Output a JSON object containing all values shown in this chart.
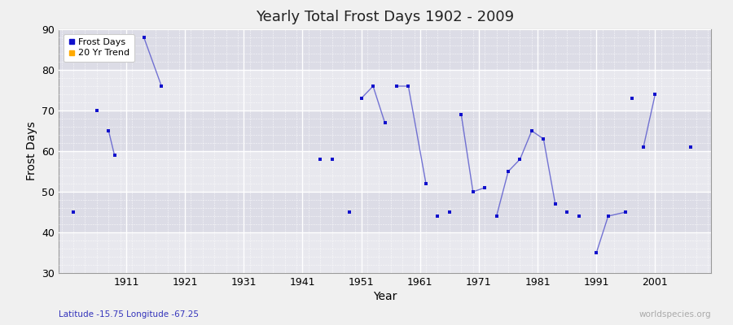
{
  "title": "Yearly Total Frost Days 1902 - 2009",
  "xlabel": "Year",
  "ylabel": "Frost Days",
  "xlim": [
    1899.5,
    2010.5
  ],
  "ylim": [
    30,
    90
  ],
  "yticks": [
    30,
    40,
    50,
    60,
    70,
    80,
    90
  ],
  "xticks": [
    1911,
    1921,
    1931,
    1941,
    1951,
    1961,
    1971,
    1981,
    1991,
    2001
  ],
  "fig_bg": "#f0f0f0",
  "band_colors": [
    "#e8e8ee",
    "#dcdce6"
  ],
  "grid_major_color": "#ffffff",
  "grid_minor_color": "#ffffff",
  "line_color": "#5555cc",
  "marker_color": "#1111cc",
  "subtitle": "Latitude -15.75 Longitude -67.25",
  "subtitle_color": "#3333bb",
  "watermark": "worldspecies.org",
  "watermark_color": "#aaaaaa",
  "legend_labels": [
    "Frost Days",
    "20 Yr Trend"
  ],
  "legend_colors": [
    "#1111cc",
    "#ffaa00"
  ],
  "frost_days_x": [
    1902,
    1906,
    1908,
    1909,
    1914,
    1917,
    1944,
    1946,
    1949,
    1951,
    1953,
    1955,
    1957,
    1959,
    1962,
    1964,
    1966,
    1968,
    1970,
    1972,
    1974,
    1976,
    1978,
    1980,
    1982,
    1984,
    1986,
    1988,
    1991,
    1993,
    1996,
    1997,
    1999,
    2001,
    2007
  ],
  "frost_days_y": [
    45,
    70,
    65,
    59,
    88,
    76,
    58,
    58,
    45,
    73,
    76,
    67,
    76,
    76,
    52,
    44,
    45,
    69,
    50,
    51,
    44,
    55,
    58,
    65,
    63,
    47,
    45,
    44,
    35,
    44,
    45,
    73,
    61,
    74,
    61
  ],
  "connected_segments": [
    [
      1908,
      1909
    ],
    [
      1914,
      1917
    ],
    [
      1951,
      1953,
      1955
    ],
    [
      1957,
      1959,
      1962
    ],
    [
      1968,
      1970,
      1972
    ],
    [
      1974,
      1976,
      1978,
      1980,
      1982,
      1984
    ],
    [
      1991,
      1993,
      1996
    ],
    [
      1999,
      2001
    ]
  ]
}
